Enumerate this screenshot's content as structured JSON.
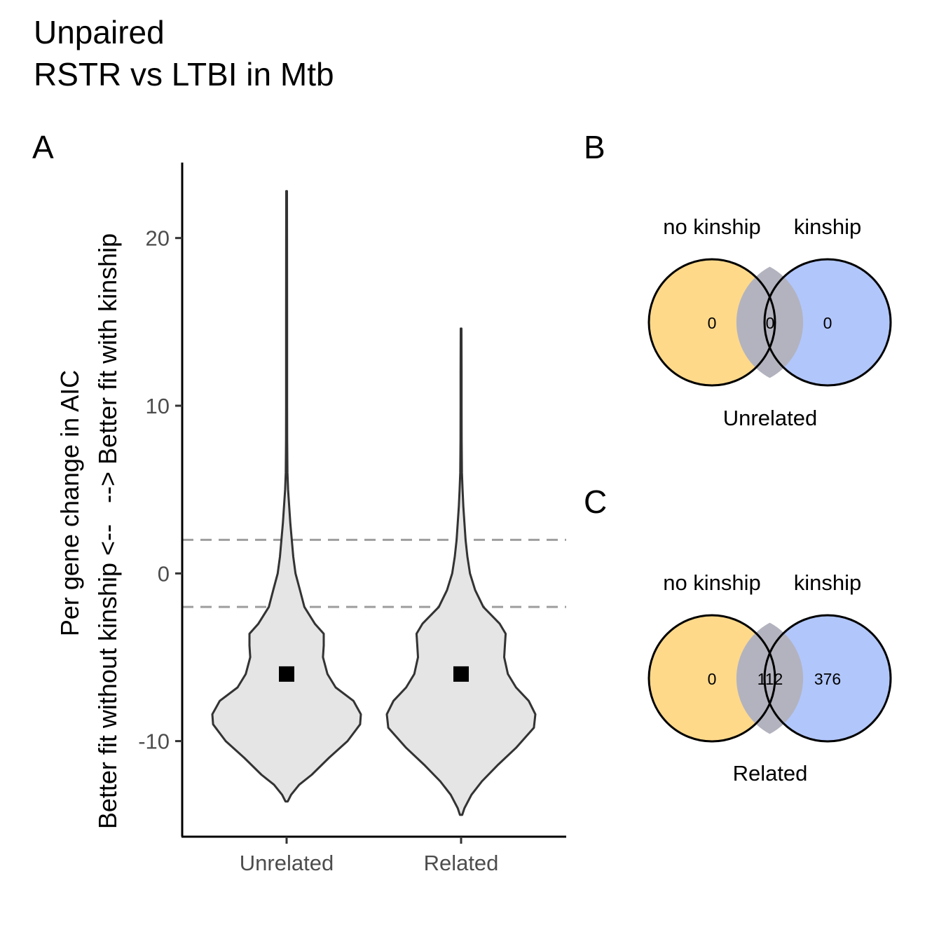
{
  "title": {
    "line1": "Unpaired",
    "line2": "RSTR vs LTBI in Mtb"
  },
  "panels": {
    "a": "A",
    "b": "B",
    "c": "C"
  },
  "colors": {
    "violin_fill": "#e5e5e5",
    "violin_stroke": "#333333",
    "threshold_line": "#9e9e9e",
    "no_kinship": "#ffd98a",
    "kinship": "#b1c6fb",
    "overlap": "#b3b3bf",
    "median_marker": "#000000"
  },
  "chart_data": [
    {
      "type": "violin",
      "ylabel_line1": "Per gene change in AIC",
      "ylabel_line2": "Better fit without kinship <--   --> Better fit with kinship",
      "categories": [
        "Unrelated",
        "Related"
      ],
      "y_ticks": [
        -10,
        0,
        10,
        20
      ],
      "y_tick_labels": [
        "-10",
        "0",
        "10",
        "20"
      ],
      "ylim": [
        -15.7,
        24.5
      ],
      "thresholds": [
        2,
        -2
      ],
      "grid": false,
      "series": [
        {
          "category": "Unrelated",
          "median": -6,
          "min": -13.6,
          "max": 22.8,
          "density": [
            [
              -13.6,
              0.015
            ],
            [
              -13.2,
              0.06
            ],
            [
              -12.6,
              0.17
            ],
            [
              -12,
              0.34
            ],
            [
              -11,
              0.57
            ],
            [
              -10,
              0.82
            ],
            [
              -9,
              0.99
            ],
            [
              -8.4,
              1.0
            ],
            [
              -7.6,
              0.9
            ],
            [
              -6.8,
              0.66
            ],
            [
              -6,
              0.55
            ],
            [
              -5,
              0.49
            ],
            [
              -4.3,
              0.5
            ],
            [
              -3.6,
              0.5
            ],
            [
              -3,
              0.38
            ],
            [
              -2,
              0.24
            ],
            [
              -1,
              0.18
            ],
            [
              0,
              0.12
            ],
            [
              1,
              0.09
            ],
            [
              2,
              0.07
            ],
            [
              3,
              0.05
            ],
            [
              4,
              0.035
            ],
            [
              5,
              0.02
            ],
            [
              6,
              0.011
            ],
            [
              8,
              0.008
            ],
            [
              10,
              0.007
            ],
            [
              15,
              0.007
            ],
            [
              20,
              0.006
            ],
            [
              22.8,
              0.005
            ]
          ]
        },
        {
          "category": "Related",
          "median": -6,
          "min": -14.4,
          "max": 14.6,
          "density": [
            [
              -14.4,
              0.015
            ],
            [
              -14,
              0.045
            ],
            [
              -13.2,
              0.14
            ],
            [
              -12.4,
              0.28
            ],
            [
              -11.4,
              0.5
            ],
            [
              -10.4,
              0.74
            ],
            [
              -9.2,
              0.98
            ],
            [
              -8.4,
              1.0
            ],
            [
              -7.6,
              0.91
            ],
            [
              -6.8,
              0.74
            ],
            [
              -6,
              0.63
            ],
            [
              -5,
              0.58
            ],
            [
              -4.3,
              0.59
            ],
            [
              -3.6,
              0.6
            ],
            [
              -3,
              0.52
            ],
            [
              -2,
              0.3
            ],
            [
              -1,
              0.19
            ],
            [
              0,
              0.12
            ],
            [
              1,
              0.085
            ],
            [
              2,
              0.06
            ],
            [
              3,
              0.045
            ],
            [
              4,
              0.03
            ],
            [
              5,
              0.02
            ],
            [
              6,
              0.011
            ],
            [
              8,
              0.008
            ],
            [
              10,
              0.007
            ],
            [
              12,
              0.007
            ],
            [
              14.6,
              0.005
            ]
          ]
        }
      ]
    },
    {
      "type": "venn",
      "label": "Unrelated",
      "sets": [
        "no kinship",
        "kinship"
      ],
      "counts": {
        "only_no_kinship": 0,
        "both": 0,
        "only_kinship": 0
      }
    },
    {
      "type": "venn",
      "label": "Related",
      "sets": [
        "no kinship",
        "kinship"
      ],
      "counts": {
        "only_no_kinship": 0,
        "both": 112,
        "only_kinship": 376
      }
    }
  ]
}
